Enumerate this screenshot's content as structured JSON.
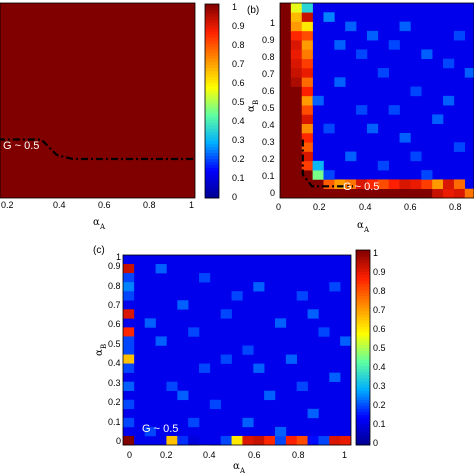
{
  "chart_data": [
    {
      "type": "heatmap",
      "panel_label": "",
      "xlabel_main": "α",
      "xlabel_sub": "A",
      "ylabel_main": "",
      "ylabel_sub": "",
      "xlim": [
        0,
        1
      ],
      "ylim": [
        0,
        1
      ],
      "x_ticks": [
        "0.2",
        "0.4",
        "0.6",
        "0.8",
        "1"
      ],
      "colorbar_range": [
        0,
        1
      ],
      "colorbar_ticks": [
        "0",
        "0.1",
        "0.2",
        "0.3",
        "0.4",
        "0.5",
        "0.6",
        "0.7",
        "0.8",
        "0.9",
        "1"
      ],
      "annotation": "G ~ 0.5",
      "background_value": 1.0,
      "boundary": [
        [
          0.0,
          0.3
        ],
        [
          0.22,
          0.3
        ],
        [
          0.3,
          0.22
        ],
        [
          0.38,
          0.2
        ],
        [
          1.0,
          0.2
        ]
      ]
    },
    {
      "type": "heatmap",
      "panel_label": "(b)",
      "xlabel_main": "α",
      "xlabel_sub": "A",
      "ylabel_main": "α",
      "ylabel_sub": "B",
      "xlim": [
        0,
        1
      ],
      "ylim": [
        0,
        1
      ],
      "x_ticks": [
        "0",
        "0.2",
        "0.4",
        "0.6",
        "0.8"
      ],
      "y_ticks": [
        "0",
        "0.1",
        "0.2",
        "0.3",
        "0.4",
        "0.5",
        "0.6",
        "0.7",
        "0.8",
        "0.9",
        "1"
      ],
      "annotation": "G ~ 0.5",
      "grid_size": 21,
      "background_value": 0.12,
      "cells": [
        [
          0,
          0,
          1.0
        ],
        [
          1,
          0,
          1.0
        ],
        [
          2,
          0,
          1.0
        ],
        [
          3,
          0,
          1.0
        ],
        [
          4,
          0,
          1.0
        ],
        [
          5,
          0,
          1.0
        ],
        [
          6,
          0,
          1.0
        ],
        [
          7,
          0,
          1.0
        ],
        [
          8,
          0,
          1.0
        ],
        [
          9,
          0,
          1.0
        ],
        [
          10,
          0,
          1.0
        ],
        [
          11,
          0,
          1.0
        ],
        [
          12,
          0,
          1.0
        ],
        [
          13,
          0,
          1.0
        ],
        [
          14,
          0,
          0.92
        ],
        [
          15,
          0,
          0.88
        ],
        [
          16,
          0,
          0.9
        ],
        [
          17,
          0,
          0.75
        ],
        [
          18,
          0,
          0.62
        ],
        [
          19,
          0,
          0.95
        ],
        [
          20,
          0,
          0.72
        ],
        [
          0,
          1,
          1.0
        ],
        [
          1,
          1,
          1.0
        ],
        [
          2,
          1,
          1.0
        ],
        [
          3,
          1,
          1.0
        ],
        [
          4,
          1,
          0.78
        ],
        [
          5,
          1,
          0.7
        ],
        [
          6,
          1,
          0.75
        ],
        [
          7,
          1,
          0.9
        ],
        [
          8,
          1,
          0.85
        ],
        [
          9,
          1,
          0.8
        ],
        [
          10,
          1,
          0.86
        ],
        [
          11,
          1,
          0.9
        ],
        [
          12,
          1,
          0.88
        ],
        [
          13,
          1,
          0.82
        ],
        [
          14,
          1,
          0.7
        ],
        [
          15,
          1,
          0.9
        ],
        [
          16,
          1,
          0.76
        ],
        [
          0,
          2,
          1.0
        ],
        [
          1,
          2,
          1.0
        ],
        [
          2,
          2,
          1.0
        ],
        [
          3,
          2,
          0.45
        ],
        [
          4,
          2,
          0.2
        ],
        [
          0,
          3,
          1.0
        ],
        [
          1,
          3,
          1.0
        ],
        [
          2,
          3,
          0.82
        ],
        [
          3,
          3,
          0.3
        ],
        [
          0,
          4,
          1.0
        ],
        [
          1,
          4,
          1.0
        ],
        [
          2,
          4,
          0.9
        ],
        [
          0,
          5,
          1.0
        ],
        [
          1,
          5,
          1.0
        ],
        [
          2,
          5,
          0.78
        ],
        [
          0,
          6,
          1.0
        ],
        [
          1,
          6,
          1.0
        ],
        [
          2,
          6,
          0.85
        ],
        [
          0,
          7,
          1.0
        ],
        [
          1,
          7,
          1.0
        ],
        [
          2,
          7,
          0.72
        ],
        [
          0,
          8,
          1.0
        ],
        [
          1,
          8,
          1.0
        ],
        [
          2,
          8,
          0.9
        ],
        [
          0,
          9,
          1.0
        ],
        [
          1,
          9,
          1.0
        ],
        [
          2,
          9,
          0.8
        ],
        [
          0,
          10,
          1.0
        ],
        [
          1,
          10,
          1.0
        ],
        [
          2,
          10,
          0.7
        ],
        [
          0,
          11,
          1.0
        ],
        [
          1,
          11,
          1.0
        ],
        [
          2,
          11,
          0.86
        ],
        [
          0,
          12,
          1.0
        ],
        [
          1,
          12,
          0.95
        ],
        [
          2,
          12,
          0.76
        ],
        [
          0,
          13,
          1.0
        ],
        [
          1,
          13,
          0.92
        ],
        [
          2,
          13,
          0.88
        ],
        [
          0,
          14,
          1.0
        ],
        [
          1,
          14,
          0.9
        ],
        [
          2,
          14,
          0.82
        ],
        [
          0,
          15,
          1.0
        ],
        [
          1,
          15,
          0.88
        ],
        [
          2,
          15,
          0.74
        ],
        [
          0,
          16,
          1.0
        ],
        [
          1,
          16,
          0.9
        ],
        [
          2,
          16,
          0.7
        ],
        [
          0,
          17,
          1.0
        ],
        [
          1,
          17,
          0.85
        ],
        [
          2,
          17,
          0.8
        ],
        [
          0,
          18,
          1.0
        ],
        [
          1,
          18,
          0.7
        ],
        [
          2,
          18,
          0.6
        ],
        [
          0,
          19,
          1.0
        ],
        [
          1,
          19,
          0.66
        ],
        [
          2,
          19,
          0.92
        ],
        [
          0,
          20,
          1.0
        ],
        [
          1,
          20,
          0.55
        ],
        [
          2,
          20,
          0.35
        ],
        [
          4,
          19,
          0.25
        ],
        [
          6,
          18,
          0.22
        ],
        [
          8,
          17,
          0.22
        ],
        [
          10,
          16,
          0.2
        ],
        [
          13,
          15,
          0.22
        ],
        [
          15,
          14,
          0.2
        ],
        [
          17,
          13,
          0.22
        ],
        [
          9,
          13,
          0.2
        ],
        [
          5,
          12,
          0.22
        ],
        [
          12,
          11,
          0.2
        ],
        [
          18,
          10,
          0.22
        ],
        [
          7,
          9,
          0.2
        ],
        [
          14,
          8,
          0.22
        ],
        [
          4,
          7,
          0.2
        ],
        [
          11,
          6,
          0.22
        ],
        [
          16,
          5,
          0.2
        ],
        [
          6,
          4,
          0.22
        ],
        [
          9,
          3,
          0.2
        ],
        [
          19,
          3,
          0.22
        ],
        [
          13,
          2,
          0.2
        ],
        [
          7,
          15,
          0.2
        ],
        [
          11,
          18,
          0.22
        ],
        [
          16,
          17,
          0.2
        ],
        [
          19,
          12,
          0.22
        ],
        [
          3,
          10,
          0.22
        ],
        [
          10,
          9,
          0.2
        ],
        [
          15,
          10,
          0.22
        ],
        [
          20,
          6,
          0.2
        ],
        [
          8,
          7,
          0.22
        ],
        [
          12,
          4,
          0.2
        ],
        [
          5,
          16,
          0.22
        ],
        [
          18,
          19,
          0.2
        ]
      ],
      "boundary": [
        [
          0.1,
          0.3
        ],
        [
          0.1,
          0.12
        ],
        [
          0.14,
          0.06
        ],
        [
          0.22,
          0.06
        ],
        [
          0.32,
          0.06
        ]
      ]
    },
    {
      "type": "heatmap",
      "panel_label": "(c)",
      "xlabel_main": "α",
      "xlabel_sub": "A",
      "ylabel_main": "α",
      "ylabel_sub": "B",
      "xlim": [
        0,
        1
      ],
      "ylim": [
        0,
        1
      ],
      "x_ticks": [
        "0",
        "0.2",
        "0.4",
        "0.6",
        "0.8",
        "1"
      ],
      "y_ticks": [
        "0",
        "0.1",
        "0.2",
        "0.3",
        "0.4",
        "0.5",
        "0.6",
        "0.7",
        "0.8",
        "0.9",
        "1"
      ],
      "colorbar_range": [
        0,
        1
      ],
      "colorbar_ticks": [
        "0",
        "0.1",
        "0.2",
        "0.3",
        "0.4",
        "0.5",
        "0.6",
        "0.7",
        "0.8",
        "0.9",
        "1"
      ],
      "annotation": "G ~ 0.5",
      "grid_size": 21,
      "background_value": 0.12,
      "cells": [
        [
          0,
          0,
          1.0
        ],
        [
          4,
          0,
          0.65
        ],
        [
          5,
          0,
          0.18
        ],
        [
          6,
          0,
          0.1
        ],
        [
          8,
          0,
          0.12
        ],
        [
          9,
          0,
          0.2
        ],
        [
          10,
          0,
          0.6
        ],
        [
          11,
          0,
          0.9
        ],
        [
          12,
          0,
          0.92
        ],
        [
          13,
          0,
          0.85
        ],
        [
          14,
          0,
          0.2
        ],
        [
          15,
          0,
          0.86
        ],
        [
          16,
          0,
          0.8
        ],
        [
          17,
          0,
          0.15
        ],
        [
          18,
          0,
          0.2
        ],
        [
          19,
          0,
          0.9
        ],
        [
          20,
          0,
          0.88
        ],
        [
          0,
          19,
          0.92
        ],
        [
          0,
          18,
          0.2
        ],
        [
          0,
          17,
          0.25
        ],
        [
          0,
          16,
          0.2
        ],
        [
          0,
          14,
          0.9
        ],
        [
          0,
          12,
          0.85
        ],
        [
          0,
          11,
          0.2
        ],
        [
          0,
          10,
          0.2
        ],
        [
          0,
          9,
          0.65
        ],
        [
          0,
          8,
          0.2
        ],
        [
          0,
          6,
          0.22
        ],
        [
          0,
          4,
          0.2
        ],
        [
          0,
          2,
          0.2
        ],
        [
          3,
          19,
          0.22
        ],
        [
          7,
          18,
          0.2
        ],
        [
          12,
          17,
          0.22
        ],
        [
          16,
          16,
          0.2
        ],
        [
          5,
          15,
          0.22
        ],
        [
          9,
          14,
          0.2
        ],
        [
          14,
          13,
          0.22
        ],
        [
          18,
          12,
          0.2
        ],
        [
          3,
          11,
          0.22
        ],
        [
          11,
          10,
          0.2
        ],
        [
          15,
          9,
          0.22
        ],
        [
          7,
          8,
          0.2
        ],
        [
          19,
          7,
          0.22
        ],
        [
          4,
          6,
          0.2
        ],
        [
          13,
          5,
          0.22
        ],
        [
          8,
          4,
          0.2
        ],
        [
          17,
          3,
          0.22
        ],
        [
          6,
          2,
          0.2
        ],
        [
          11,
          2,
          0.22
        ],
        [
          2,
          1,
          0.2
        ],
        [
          14,
          1,
          0.22
        ],
        [
          10,
          16,
          0.2
        ],
        [
          17,
          14,
          0.22
        ],
        [
          6,
          12,
          0.2
        ],
        [
          20,
          11,
          0.22
        ],
        [
          9,
          9,
          0.2
        ],
        [
          2,
          13,
          0.22
        ],
        [
          16,
          6,
          0.2
        ],
        [
          12,
          8,
          0.22
        ],
        [
          19,
          17,
          0.2
        ],
        [
          5,
          5,
          0.22
        ]
      ],
      "boundary": []
    }
  ],
  "colormap": [
    "#00008f",
    "#0000ff",
    "#00afff",
    "#5fffa0",
    "#ffff00",
    "#ff8f00",
    "#ff2000",
    "#800000"
  ]
}
